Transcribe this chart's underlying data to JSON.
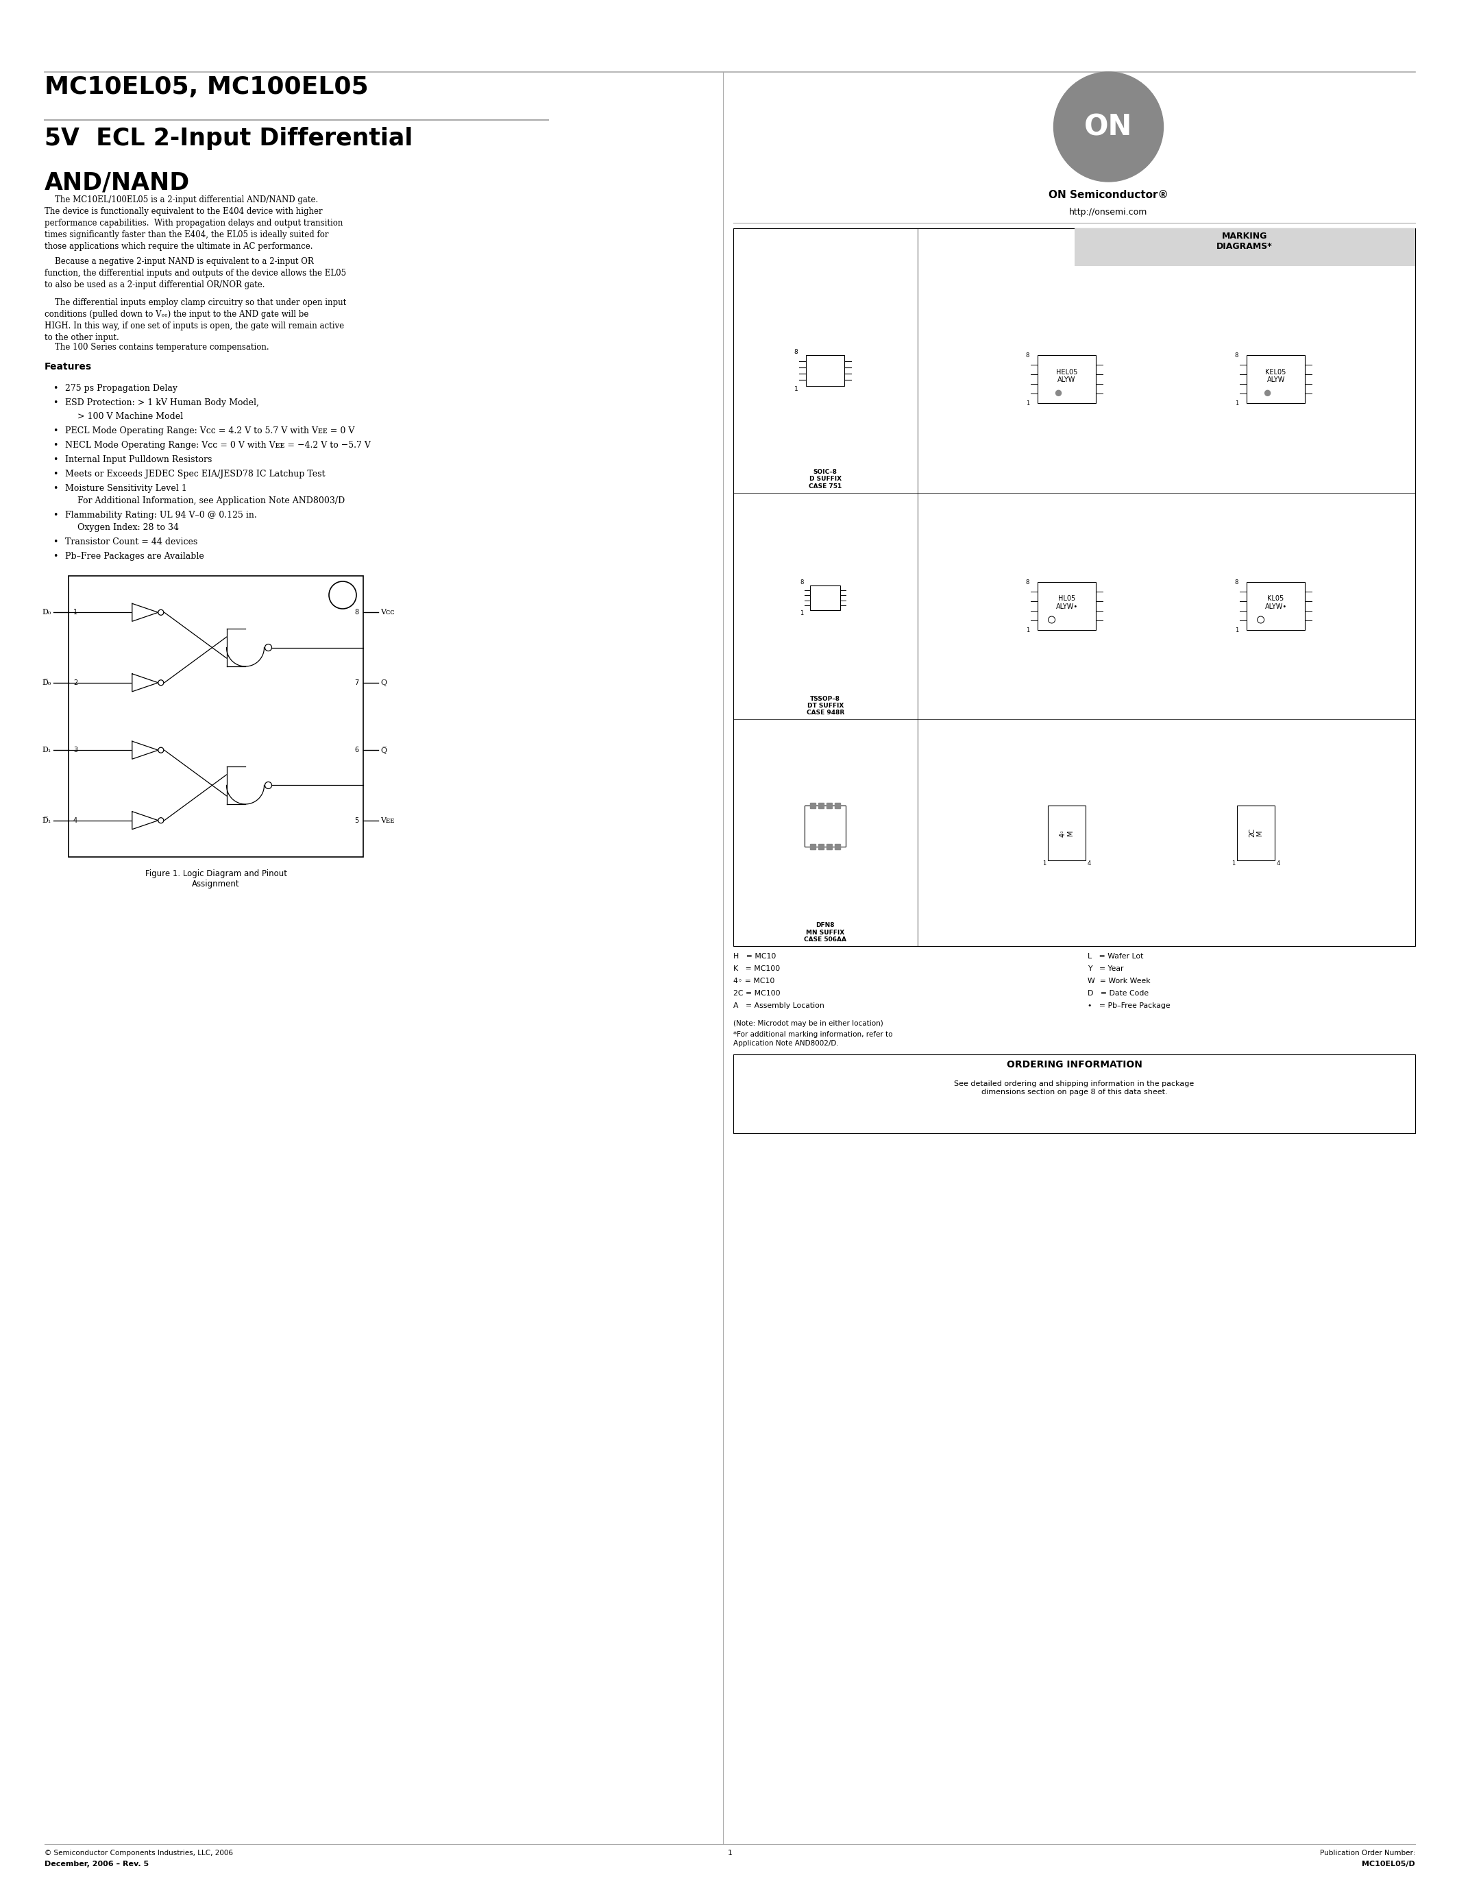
{
  "page_width": 21.26,
  "page_height": 27.51,
  "bg_color": "#ffffff",
  "title1": "MC10EL05, MC100EL05",
  "gray_color": "#aaaaaa",
  "footer_left_line1": "© Semiconductor Components Industries, LLC, 2006",
  "footer_left_line2": "December, 2006 – Rev. 5",
  "footer_center": "1",
  "footer_right_line1": "Publication Order Number:",
  "footer_right_line2": "MC10EL05/D",
  "on_semi_text": "ON Semiconductor®",
  "website": "http://onsemi.com",
  "marking_title": "MARKING\nDIAGRAMS*",
  "ordering_title": "ORDERING INFORMATION",
  "ordering_text": "See detailed ordering and shipping information in the package\ndimensions section on page 8 of this data sheet.",
  "note_text1": "(Note: Microdot may be in either location)",
  "note_text2": "*For additional marking information, refer to\nApplication Note AND8002/D.",
  "legend_col1": [
    "H   = MC10",
    "K   = MC100",
    "4◦ = MC10",
    "2C = MC100",
    "A   = Assembly Location"
  ],
  "legend_col2": [
    "L   = Wafer Lot",
    "Y   = Year",
    "W  = Work Week",
    "D   = Date Code",
    "•   = Pb–Free Package"
  ]
}
